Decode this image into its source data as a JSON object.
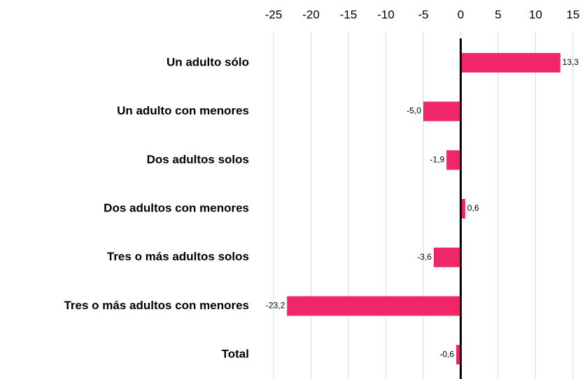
{
  "chart_data": {
    "type": "barh",
    "categories": [
      "Un adulto sólo",
      "Un adulto con menores",
      "Dos adultos solos",
      "Dos adultos con menores",
      "Tres o más adultos solos",
      "Tres o más adultos con menores",
      "Total"
    ],
    "values": [
      13.3,
      -5.0,
      -1.9,
      0.6,
      -3.6,
      -23.2,
      -0.6
    ],
    "value_labels": [
      "13,3",
      "-5,0",
      "-1,9",
      "0,6",
      "-3,6",
      "-23,2",
      "-0,6"
    ],
    "color": "#ef2768",
    "xlim": [
      -25,
      15
    ],
    "xticks": [
      -25,
      -20,
      -15,
      -10,
      -5,
      0,
      5,
      10,
      15
    ],
    "grid": true
  }
}
